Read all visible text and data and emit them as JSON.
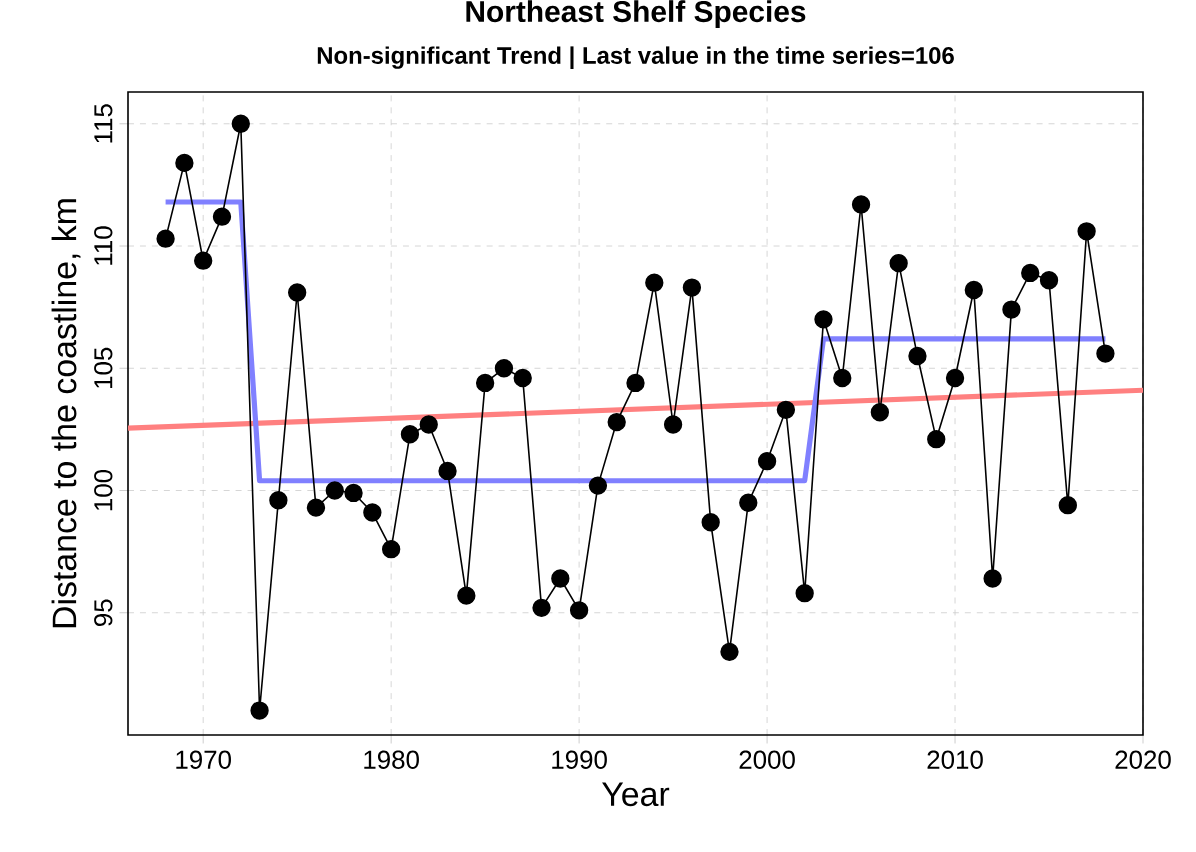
{
  "chart_data": {
    "type": "line",
    "title": "Northeast Shelf Species",
    "subtitle": "Non-significant Trend | Last value in the time series=106",
    "xlabel": "Year",
    "ylabel": "Distance to the coastline, km",
    "xlim": [
      1966,
      2020
    ],
    "ylim": [
      90,
      116.3
    ],
    "xticks": [
      1970,
      1980,
      1990,
      2000,
      2010,
      2020
    ],
    "yticks": [
      95,
      100,
      105,
      110,
      115
    ],
    "grid": true,
    "series": [
      {
        "color": "#ff8080",
        "x": [
          1966,
          2020
        ],
        "values": [
          102.55,
          104.1
        ],
        "marker": "none"
      },
      {
        "color": "#8080ff",
        "x": [
          1968,
          1972,
          1973,
          2002,
          2003,
          2018
        ],
        "values": [
          111.8,
          111.8,
          100.4,
          100.4,
          106.2,
          106.2
        ],
        "marker": "none"
      },
      {
        "color": "#000000",
        "marker": "circle",
        "x": [
          1968,
          1969,
          1970,
          1971,
          1972,
          1973,
          1974,
          1975,
          1976,
          1977,
          1978,
          1979,
          1980,
          1981,
          1982,
          1983,
          1984,
          1985,
          1986,
          1987,
          1988,
          1989,
          1990,
          1991,
          1992,
          1993,
          1994,
          1995,
          1996,
          1997,
          1998,
          1999,
          2000,
          2001,
          2002,
          2003,
          2004,
          2005,
          2006,
          2007,
          2008,
          2009,
          2010,
          2011,
          2012,
          2013,
          2014,
          2015,
          2016,
          2017,
          2018
        ],
        "values": [
          110.3,
          113.4,
          109.4,
          111.2,
          115.0,
          91.0,
          99.6,
          108.1,
          99.3,
          100.0,
          99.9,
          99.1,
          97.6,
          102.3,
          102.7,
          100.8,
          95.7,
          104.4,
          105.0,
          104.6,
          95.2,
          96.4,
          95.1,
          100.2,
          102.8,
          104.4,
          108.5,
          102.7,
          108.3,
          98.7,
          93.4,
          99.5,
          101.2,
          103.3,
          95.8,
          107.0,
          104.6,
          111.7,
          103.2,
          109.3,
          105.5,
          102.1,
          104.6,
          108.2,
          96.4,
          107.4,
          108.9,
          108.6,
          99.4,
          110.6,
          105.6
        ]
      }
    ]
  }
}
